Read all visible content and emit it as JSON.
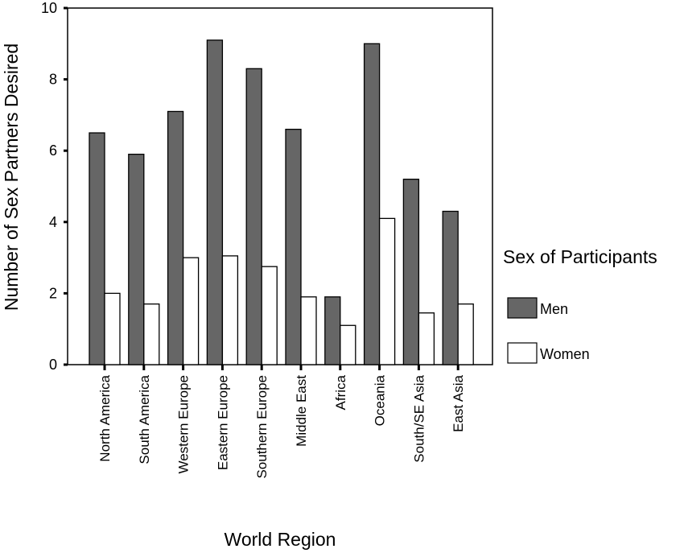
{
  "chart_data": {
    "type": "bar",
    "categories": [
      "North America",
      "South America",
      "Western Europe",
      "Eastern Europe",
      "Southern Europe",
      "Middle East",
      "Africa",
      "Oceania",
      "South/SE Asia",
      "East Asia"
    ],
    "series": [
      {
        "name": "Men",
        "values": [
          6.5,
          5.9,
          7.1,
          9.1,
          8.3,
          6.6,
          1.9,
          9.0,
          5.2,
          4.3
        ],
        "color": "#666666"
      },
      {
        "name": "Women",
        "values": [
          2.0,
          1.7,
          3.0,
          3.05,
          2.75,
          1.9,
          1.1,
          4.1,
          1.45,
          1.7
        ],
        "color": "#ffffff"
      }
    ],
    "title": "",
    "xlabel": "World Region",
    "ylabel": "Number of Sex Partners Desired",
    "ylim": [
      0,
      10
    ],
    "yticks": [
      0,
      2,
      4,
      6,
      8,
      10
    ],
    "grid": false,
    "legend": {
      "title": "Sex of Participants",
      "placement": "right"
    }
  }
}
